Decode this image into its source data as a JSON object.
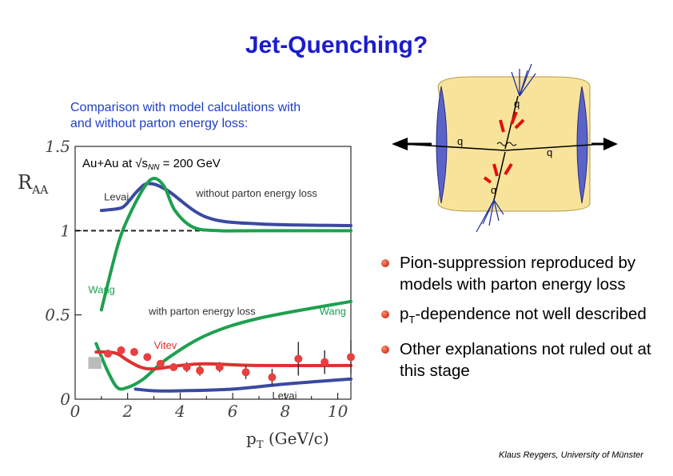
{
  "slide": {
    "title": "Jet-Quenching?",
    "subtitle_line1": "Comparison with model calculations with",
    "subtitle_line2": "and without parton energy loss:",
    "bullets": [
      "Pion-suppression reproduced by models with parton energy loss",
      "pT-dependence not well described",
      "Other explanations not ruled out at this stage"
    ],
    "credit": "Klaus Reygers, University of Münster"
  },
  "diagram": {
    "labels": [
      "q",
      "q",
      "q",
      "q"
    ],
    "colors": {
      "medium": "#f7e39a",
      "caps": "#5a64c8",
      "gluon_arrow": "#e01010",
      "jet_arrow": "#1a2aa0"
    }
  },
  "chart_data": {
    "type": "line",
    "title": "Au+Au at √sNN = 200 GeV",
    "xlabel": "p T (GeV/c)",
    "ylabel": "R AA",
    "xlim": [
      0,
      10.5
    ],
    "ylim": [
      0,
      1.5
    ],
    "xticks": [
      "0",
      "2",
      "4",
      "6",
      "8",
      "10"
    ],
    "yticks": [
      "0",
      "0.5",
      "1",
      "1.5"
    ],
    "reference_line": 1,
    "annotations": [
      "Levai",
      "without parton energy loss",
      "Wang",
      "with parton energy loss",
      "Wang",
      "Vitev",
      "Levai"
    ],
    "series": [
      {
        "name": "",
        "kind": "data_points",
        "color": "#e84040",
        "x": [
          1.25,
          1.75,
          2.25,
          2.75,
          3.25,
          3.75,
          4.25,
          4.75,
          5.5,
          6.5,
          7.5,
          8.5,
          9.5,
          10.5
        ],
        "y": [
          0.27,
          0.29,
          0.28,
          0.25,
          0.21,
          0.19,
          0.19,
          0.17,
          0.19,
          0.16,
          0.13,
          0.24,
          0.22,
          0.25
        ],
        "err": [
          0.02,
          0.02,
          0.02,
          0.02,
          0.02,
          0.02,
          0.03,
          0.03,
          0.03,
          0.04,
          0.05,
          0.1,
          0.07,
          0.1
        ]
      },
      {
        "name": "",
        "kind": "systematic_box",
        "color": "#bbbbbb",
        "x": [
          0.5,
          1.0
        ],
        "y": [
          0.18,
          0.25
        ]
      },
      {
        "name": "Levai",
        "kind": "curve",
        "color": "#3a4aa0",
        "x": [
          1.0,
          1.6,
          1.9,
          2.4,
          2.8,
          3.5,
          5,
          7,
          10.5
        ],
        "y": [
          1.12,
          1.13,
          1.15,
          1.24,
          1.28,
          1.24,
          1.08,
          1.04,
          1.03
        ]
      },
      {
        "name": "Wang",
        "kind": "curve",
        "color": "#1ea050",
        "x": [
          1.0,
          1.6,
          2.0,
          2.6,
          3.0,
          3.4,
          3.8,
          4.5,
          5.5,
          7,
          10.5
        ],
        "y": [
          0.53,
          0.9,
          1.07,
          1.25,
          1.31,
          1.26,
          1.12,
          1.02,
          1.0,
          1.0,
          1.0
        ]
      },
      {
        "name": "Wang",
        "kind": "curve",
        "color": "#1ea050",
        "x": [
          0.8,
          1.2,
          1.6,
          2.0,
          2.6,
          3.5,
          5,
          7,
          10.5
        ],
        "y": [
          0.33,
          0.18,
          0.07,
          0.07,
          0.12,
          0.24,
          0.38,
          0.48,
          0.58
        ]
      },
      {
        "name": "Vitev",
        "kind": "curve",
        "color": "#e03030",
        "x": [
          0.8,
          1.2,
          1.6,
          2.0,
          2.5,
          3.0,
          4,
          5,
          7,
          10.5
        ],
        "y": [
          0.28,
          0.28,
          0.27,
          0.23,
          0.19,
          0.18,
          0.2,
          0.21,
          0.2,
          0.2
        ]
      },
      {
        "name": "Levai",
        "kind": "curve",
        "color": "#3a4aa0",
        "x": [
          2.3,
          3,
          4,
          6,
          8,
          10.5
        ],
        "y": [
          0.06,
          0.05,
          0.05,
          0.06,
          0.09,
          0.12
        ]
      }
    ]
  }
}
